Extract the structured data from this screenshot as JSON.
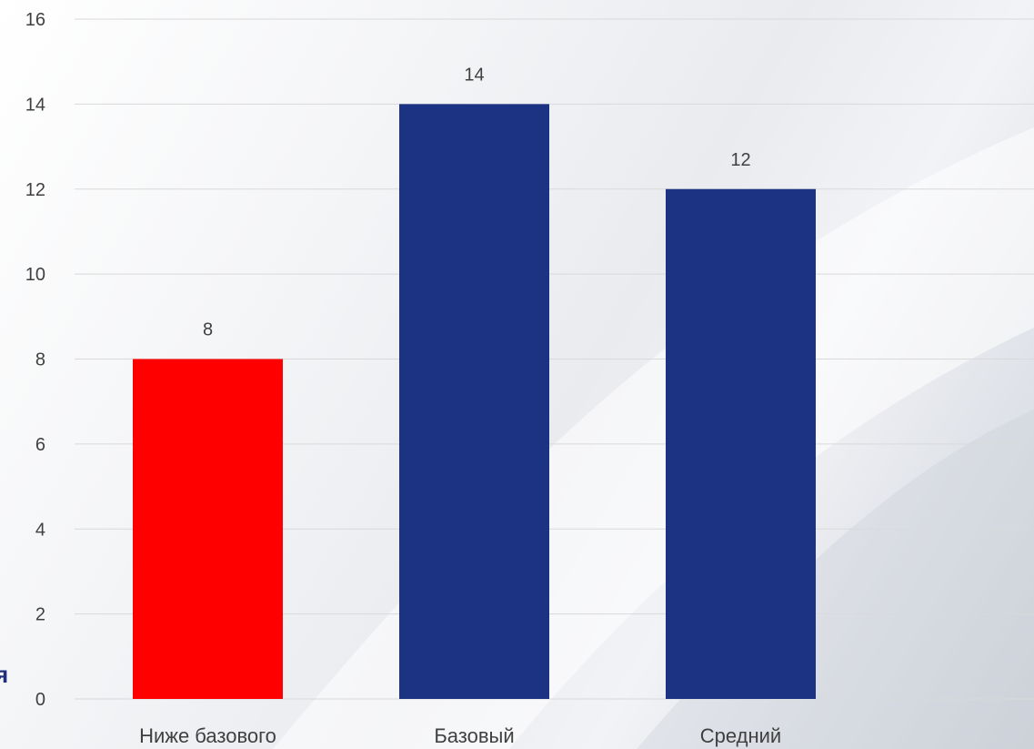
{
  "fragment_text": "я",
  "colors": {
    "highlight": "#ff0000",
    "bar": "#1c3282",
    "grid": "#d9d9d9",
    "text": "#404040"
  },
  "chart_data": {
    "type": "bar",
    "title": "",
    "xlabel": "",
    "ylabel": "",
    "categories": [
      "Ниже базового",
      "Базовый",
      "Средний"
    ],
    "values": [
      8,
      14,
      12
    ],
    "bar_colors": [
      "#ff0000",
      "#1c3282",
      "#1c3282"
    ],
    "data_labels": [
      "8",
      "14",
      "12"
    ],
    "ylim": [
      0,
      16
    ],
    "yticks": [
      "0",
      "2",
      "4",
      "6",
      "8",
      "10",
      "12",
      "14",
      "16"
    ],
    "grid": true,
    "legend": "none"
  }
}
